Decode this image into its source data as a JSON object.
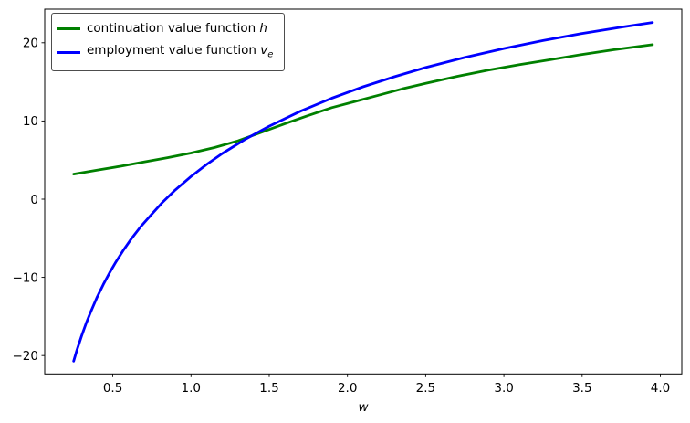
{
  "chart_data": {
    "type": "line",
    "title": "",
    "xlabel": "w",
    "ylabel": "",
    "xlim": [
      0.065,
      4.137
    ],
    "ylim": [
      -22.35,
      24.3
    ],
    "grid": false,
    "frame": true,
    "background_color": "#ffffff",
    "spine_color": "#000000",
    "x_axis": {
      "tick_values": [
        0.5,
        1.0,
        1.5,
        2.0,
        2.5,
        3.0,
        3.5,
        4.0
      ],
      "tick_labels": [
        "0.5",
        "1.0",
        "1.5",
        "2.0",
        "2.5",
        "3.0",
        "3.5",
        "4.0"
      ]
    },
    "y_axis": {
      "tick_values": [
        -20,
        -10,
        0,
        10,
        20
      ],
      "tick_labels": [
        "−20",
        "−10",
        "0",
        "10",
        "20"
      ]
    },
    "legend": {
      "position": "upper left",
      "entries": [
        {
          "text": "continuation value function",
          "var": "h",
          "sub": "",
          "color": "#008000"
        },
        {
          "text": "employment value function",
          "var": "v",
          "sub": "e",
          "color": "#0000ff"
        }
      ]
    },
    "series": [
      {
        "name": "continuation value function h",
        "color": "#008000",
        "line_width": 2.8,
        "points": [
          [
            0.25,
            3.2
          ],
          [
            0.4,
            3.7
          ],
          [
            0.55,
            4.2
          ],
          [
            0.7,
            4.75
          ],
          [
            0.85,
            5.3
          ],
          [
            1.0,
            5.9
          ],
          [
            1.15,
            6.6
          ],
          [
            1.3,
            7.45
          ],
          [
            1.45,
            8.55
          ],
          [
            1.6,
            9.65
          ],
          [
            1.75,
            10.7
          ],
          [
            1.9,
            11.7
          ],
          [
            2.05,
            12.5
          ],
          [
            2.2,
            13.3
          ],
          [
            2.35,
            14.1
          ],
          [
            2.5,
            14.8
          ],
          [
            2.7,
            15.7
          ],
          [
            2.9,
            16.5
          ],
          [
            3.1,
            17.2
          ],
          [
            3.3,
            17.85
          ],
          [
            3.5,
            18.5
          ],
          [
            3.7,
            19.1
          ],
          [
            3.95,
            19.75
          ]
        ]
      },
      {
        "name": "employment value function v_e",
        "color": "#0000ff",
        "line_width": 2.8,
        "points": [
          [
            0.25,
            -20.71
          ],
          [
            0.27,
            -19.36
          ],
          [
            0.3,
            -17.52
          ],
          [
            0.33,
            -15.87
          ],
          [
            0.36,
            -14.36
          ],
          [
            0.4,
            -12.53
          ],
          [
            0.44,
            -10.89
          ],
          [
            0.48,
            -9.4
          ],
          [
            0.52,
            -8.03
          ],
          [
            0.57,
            -6.46
          ],
          [
            0.62,
            -5.04
          ],
          [
            0.68,
            -3.48
          ],
          [
            0.75,
            -1.9
          ],
          [
            0.82,
            -0.36
          ],
          [
            0.9,
            1.18
          ],
          [
            1.0,
            2.9
          ],
          [
            1.1,
            4.44
          ],
          [
            1.2,
            5.84
          ],
          [
            1.35,
            7.7
          ],
          [
            1.5,
            9.33
          ],
          [
            1.7,
            11.25
          ],
          [
            1.9,
            12.91
          ],
          [
            2.1,
            14.37
          ],
          [
            2.3,
            15.66
          ],
          [
            2.5,
            16.83
          ],
          [
            2.75,
            18.12
          ],
          [
            3.0,
            19.26
          ],
          [
            3.25,
            20.28
          ],
          [
            3.5,
            21.19
          ],
          [
            3.75,
            22.0
          ],
          [
            3.95,
            22.6
          ]
        ]
      }
    ]
  }
}
